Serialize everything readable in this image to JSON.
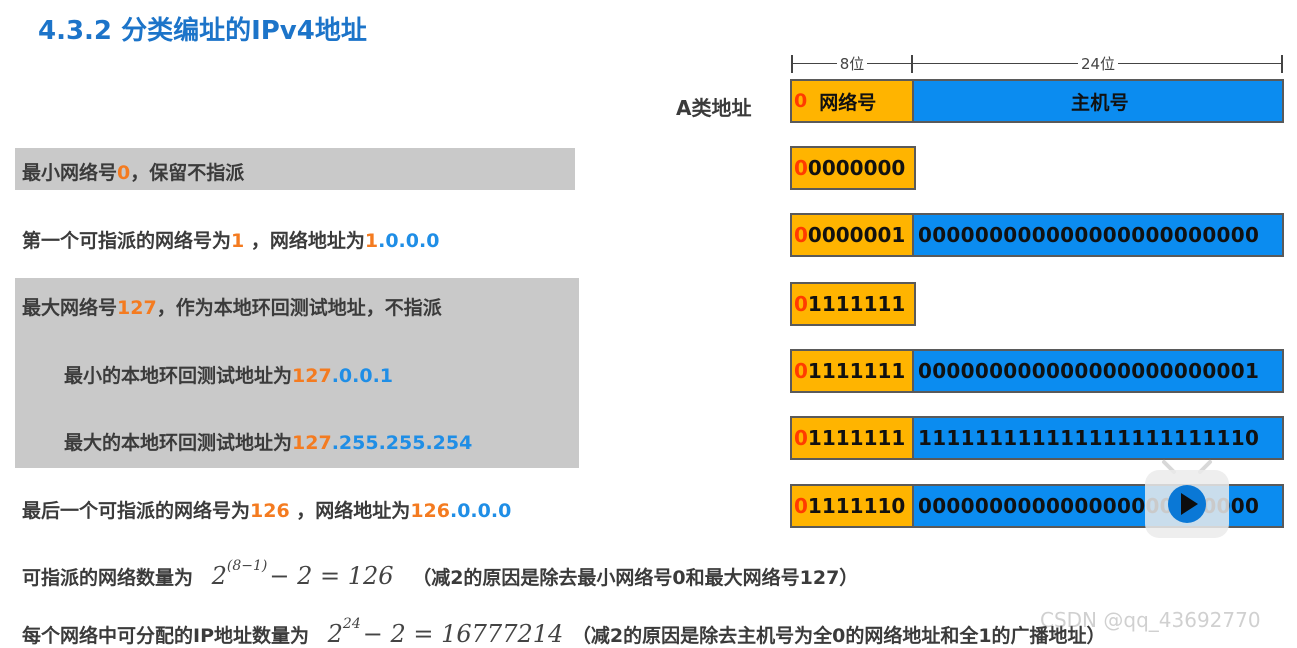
{
  "title": "4.3.2 分类编址的IPv4地址",
  "dims": {
    "net_bits": "8位",
    "host_bits": "24位"
  },
  "header": {
    "class_label": "A类地址",
    "zero": "0",
    "net_label": "网络号",
    "host_label": "主机号"
  },
  "rows": [
    {
      "a": "最小网络号",
      "b": "0",
      "c": "，保留不指派",
      "net_first": "0",
      "net_rest": "0000000",
      "host": ""
    },
    {
      "a": "第一个可指派的网络号为",
      "b": "1",
      "c": " ，网络地址为",
      "ip1": "1",
      "ip2": ".0.0.0",
      "net_first": "0",
      "net_rest": "0000001",
      "host": "000000000000000000000000"
    },
    {
      "a": "最大网络号",
      "b": "127",
      "c": "，作为本地环回测试地址，不指派",
      "net_first": "0",
      "net_rest": "1111111",
      "host": ""
    },
    {
      "a": "最小的本地环回测试地址为",
      "ip1": "127",
      "ip2": ".0.0.1",
      "net_first": "0",
      "net_rest": "1111111",
      "host": "000000000000000000000001"
    },
    {
      "a": "最大的本地环回测试地址为",
      "ip1": "127",
      "ip2": ".255.255.254",
      "net_first": "0",
      "net_rest": "1111111",
      "host": "111111111111111111111110"
    },
    {
      "a": "最后一个可指派的网络号为",
      "b": "126",
      "c": " ，网络地址为",
      "ip1": "126",
      "ip2": ".0.0.0",
      "net_first": "0",
      "net_rest": "1111110",
      "host": "000000000000000000000000"
    }
  ],
  "formula1": {
    "label": "可指派的网络数量为",
    "base": "2",
    "exp": "(8−1)",
    "rest": "− 2 = 126",
    "note": "（减2的原因是除去最小网络号0和最大网络号127）"
  },
  "formula2": {
    "label": "每个网络中可分配的IP地址数量为",
    "base": "2",
    "exp": "24",
    "rest": "− 2 = 16777214",
    "note": "（减2的原因是除去主机号为全0的网络地址和全1的广播地址）"
  },
  "watermark": "CSDN @qq_43692770",
  "colors": {
    "title": "#1c74c9",
    "net_bg": "#ffb400",
    "host_bg": "#0b8cf0",
    "orange": "#f47b20",
    "blue": "#1f8ee6",
    "gray_bg": "#c9c9c9"
  },
  "icons": [
    "play-icon"
  ]
}
